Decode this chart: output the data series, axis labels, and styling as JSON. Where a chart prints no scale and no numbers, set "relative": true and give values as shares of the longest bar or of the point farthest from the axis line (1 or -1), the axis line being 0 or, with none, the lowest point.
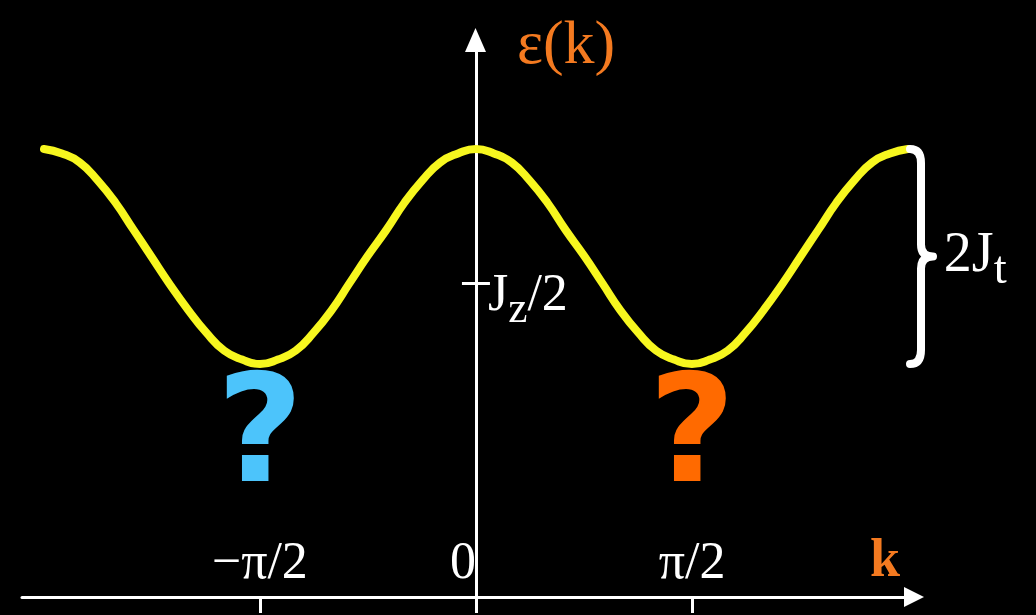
{
  "chart_data": {
    "type": "line",
    "relative": true,
    "xlabel": "k",
    "ylabel": "ε(k)",
    "x": [
      -3.14,
      -3.01,
      -2.88,
      -2.75,
      -2.62,
      -2.49,
      -2.36,
      -2.23,
      -2.09,
      -1.96,
      -1.83,
      -1.7,
      -1.57,
      -1.44,
      -1.31,
      -1.18,
      -1.05,
      -0.92,
      -0.79,
      -0.65,
      -0.52,
      -0.39,
      -0.26,
      -0.13,
      0,
      0.13,
      0.26,
      0.39,
      0.52,
      0.65,
      0.79,
      0.92,
      1.05,
      1.18,
      1.31,
      1.44,
      1.57,
      1.7,
      1.83,
      1.96,
      2.09,
      2.23,
      2.36,
      2.49,
      2.62,
      2.75,
      2.88,
      3.01,
      3.14
    ],
    "series": [
      {
        "color": "#f7f71f",
        "values": [
          1,
          0.99,
          0.97,
          0.93,
          0.88,
          0.82,
          0.76,
          0.7,
          0.64,
          0.59,
          0.55,
          0.53,
          0.52,
          0.53,
          0.55,
          0.59,
          0.64,
          0.7,
          0.76,
          0.82,
          0.88,
          0.93,
          0.97,
          0.99,
          1,
          0.99,
          0.97,
          0.93,
          0.88,
          0.82,
          0.76,
          0.7,
          0.64,
          0.59,
          0.55,
          0.53,
          0.52,
          0.53,
          0.55,
          0.59,
          0.64,
          0.7,
          0.76,
          0.82,
          0.88,
          0.93,
          0.97,
          0.99,
          1
        ]
      }
    ],
    "xlim": [
      -3.3,
      3.17
    ],
    "xticks": [
      {
        "value": -1.571,
        "label": "−π/2"
      },
      0,
      {
        "value": 1.571,
        "label": "π/2"
      }
    ],
    "tick_labels": "x",
    "marker": "none",
    "line_style": "solid",
    "ref_lines": [
      {
        "axis": "y",
        "value": 0.7,
        "label": "J$_{z}$/2",
        "color": "#ffffff"
      }
    ],
    "annotations": [
      {
        "text": "?",
        "x": -1.57,
        "y": 0.52
      },
      {
        "text": "?",
        "x": 1.57,
        "y": 0.52
      },
      "2J$_{t}$"
    ]
  }
}
